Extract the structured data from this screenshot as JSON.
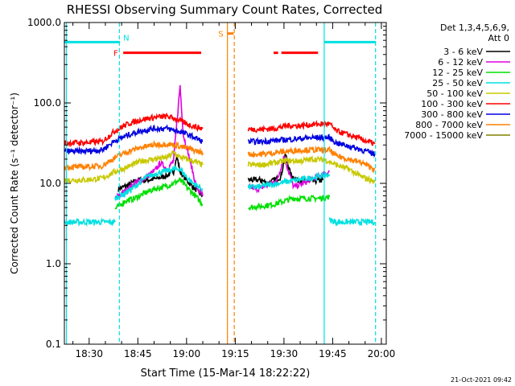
{
  "chart_data": {
    "type": "line",
    "title": "RHESSI Observing Summary Count Rates, Corrected",
    "xlabel": "Start Time (15-Mar-14 18:22:22)",
    "ylabel": "Corrected Count Rate (s⁻¹ detector⁻¹)",
    "yscale": "log",
    "ylim": [
      0.1,
      1000
    ],
    "xlim_minutes_after_18_00": [
      22.37,
      121.5
    ],
    "x_tick_labels": [
      "18:30",
      "18:45",
      "19:00",
      "19:15",
      "19:30",
      "19:45",
      "20:00"
    ],
    "x_tick_minutes": [
      30,
      45,
      60,
      75,
      90,
      105,
      120
    ],
    "y_tick_labels": [
      "0.1",
      "1.0",
      "10.0",
      "100.0",
      "1000.0"
    ],
    "y_tick_values": [
      0.1,
      1,
      10,
      100,
      1000
    ],
    "legend": {
      "placement": "right-outside",
      "header": [
        "Det 1,3,4,5,6,9,",
        "Att 0"
      ],
      "entries": [
        {
          "label": "3 - 6 keV",
          "color": "#000000"
        },
        {
          "label": "6 - 12 keV",
          "color": "#e000e0"
        },
        {
          "label": "12 - 25 keV",
          "color": "#00e000"
        },
        {
          "label": "25 - 50 keV",
          "color": "#00e0e0"
        },
        {
          "label": "50 - 100 keV",
          "color": "#c8c800"
        },
        {
          "label": "100 - 300 keV",
          "color": "#ff0000"
        },
        {
          "label": "300 - 800 keV",
          "color": "#0000e0"
        },
        {
          "label": "800 - 7000 keV",
          "color": "#ff8000"
        },
        {
          "label": "7000 - 15000 keV",
          "color": "#808000"
        }
      ]
    },
    "series": [
      {
        "name": "3 - 6 keV",
        "color": "#000000",
        "segments": [
          [
            [
              39,
              8.5
            ],
            [
              42,
              9.5
            ],
            [
              45,
              11
            ],
            [
              48,
              11
            ],
            [
              51,
              11.5
            ],
            [
              54,
              12.5
            ],
            [
              56,
              14
            ],
            [
              57,
              22
            ],
            [
              58,
              14
            ],
            [
              60,
              11
            ],
            [
              62,
              9
            ],
            [
              65,
              7
            ]
          ],
          [
            [
              79,
              11
            ],
            [
              83,
              11
            ],
            [
              85,
              10
            ],
            [
              87,
              11
            ],
            [
              89,
              12
            ],
            [
              90.5,
              23
            ],
            [
              92,
              13
            ],
            [
              94,
              11
            ],
            [
              98,
              10.5
            ],
            [
              102,
              11
            ]
          ]
        ]
      },
      {
        "name": "6 - 12 keV",
        "color": "#e000e0",
        "segments": [
          [
            [
              38,
              6.5
            ],
            [
              41,
              8
            ],
            [
              44,
              10
            ],
            [
              47,
              11.5
            ],
            [
              50,
              14
            ],
            [
              52,
              18
            ],
            [
              54,
              15
            ],
            [
              56,
              19
            ],
            [
              58,
              165
            ],
            [
              59,
              40
            ],
            [
              61,
              20
            ],
            [
              63,
              9
            ],
            [
              65,
              7
            ]
          ],
          [
            [
              79,
              9
            ],
            [
              82,
              8.5
            ],
            [
              85,
              9.5
            ],
            [
              88,
              11
            ],
            [
              90,
              22
            ],
            [
              91,
              16
            ],
            [
              93,
              9
            ],
            [
              96,
              10
            ],
            [
              100,
              12
            ],
            [
              104,
              14
            ]
          ]
        ]
      },
      {
        "name": "12 - 25 keV",
        "color": "#00e000",
        "segments": [
          [
            [
              38,
              4.8
            ],
            [
              41,
              6
            ],
            [
              44,
              6.5
            ],
            [
              47,
              7.5
            ],
            [
              50,
              8.5
            ],
            [
              53,
              9
            ],
            [
              56,
              10
            ],
            [
              58,
              11
            ],
            [
              60,
              9
            ],
            [
              62,
              7.5
            ],
            [
              65,
              5.5
            ]
          ],
          [
            [
              79,
              5
            ],
            [
              83,
              5.2
            ],
            [
              87,
              5.5
            ],
            [
              90,
              6
            ],
            [
              93,
              6.5
            ],
            [
              97,
              6.5
            ],
            [
              101,
              6.5
            ],
            [
              104,
              6.8
            ]
          ]
        ]
      },
      {
        "name": "25 - 50 keV",
        "color": "#00e0e0",
        "segments": [
          [
            [
              22.4,
              3.3
            ],
            [
              38,
              3.3
            ]
          ],
          [
            [
              38,
              6.5
            ],
            [
              41,
              7.5
            ],
            [
              44,
              9
            ],
            [
              47,
              11.5
            ],
            [
              50,
              13
            ],
            [
              53,
              14
            ],
            [
              56,
              15
            ],
            [
              58,
              15
            ],
            [
              60,
              12
            ],
            [
              62,
              10
            ],
            [
              65,
              8.5
            ]
          ],
          [
            [
              79,
              9
            ],
            [
              82,
              9
            ],
            [
              85,
              9.5
            ],
            [
              88,
              10
            ],
            [
              91,
              10.5
            ],
            [
              94,
              11
            ],
            [
              97,
              11.5
            ],
            [
              100,
              12
            ],
            [
              104,
              13
            ]
          ],
          [
            [
              104,
              3.5
            ],
            [
              106,
              3.3
            ],
            [
              110,
              3.3
            ],
            [
              114,
              3.3
            ],
            [
              118,
              3.3
            ]
          ]
        ]
      },
      {
        "name": "50 - 100 keV",
        "color": "#c8c800",
        "segments": [
          [
            [
              22.4,
              11
            ],
            [
              28,
              11
            ],
            [
              34,
              11.5
            ],
            [
              38,
              14
            ],
            [
              42,
              16
            ],
            [
              46,
              19
            ],
            [
              50,
              20
            ],
            [
              54,
              21
            ],
            [
              56,
              24
            ],
            [
              58,
              21
            ],
            [
              62,
              19
            ],
            [
              65,
              17
            ]
          ],
          [
            [
              79,
              17
            ],
            [
              83,
              17
            ],
            [
              87,
              18
            ],
            [
              91,
              19
            ],
            [
              95,
              19
            ],
            [
              99,
              20
            ],
            [
              103,
              19.5
            ],
            [
              106,
              17
            ],
            [
              110,
              15
            ],
            [
              114,
              12
            ],
            [
              118,
              10.5
            ]
          ]
        ]
      },
      {
        "name": "100 - 300 keV",
        "color": "#ff0000",
        "segments": [
          [
            [
              22.4,
              32
            ],
            [
              28,
              32
            ],
            [
              34,
              33
            ],
            [
              38,
              45
            ],
            [
              42,
              55
            ],
            [
              46,
              62
            ],
            [
              50,
              66
            ],
            [
              54,
              68
            ],
            [
              57,
              63
            ],
            [
              60,
              55
            ],
            [
              63,
              50
            ],
            [
              65,
              48
            ]
          ],
          [
            [
              79,
              47
            ],
            [
              83,
              47
            ],
            [
              87,
              48
            ],
            [
              91,
              52
            ],
            [
              95,
              52
            ],
            [
              99,
              54
            ],
            [
              104,
              55
            ],
            [
              106,
              45
            ],
            [
              110,
              40
            ],
            [
              114,
              35
            ],
            [
              118,
              31
            ]
          ]
        ]
      },
      {
        "name": "300 - 800 keV",
        "color": "#0000e0",
        "segments": [
          [
            [
              22.4,
              25
            ],
            [
              28,
              25
            ],
            [
              34,
              26
            ],
            [
              38,
              34
            ],
            [
              42,
              40
            ],
            [
              46,
              45
            ],
            [
              50,
              48
            ],
            [
              54,
              48
            ],
            [
              58,
              44
            ],
            [
              62,
              38
            ],
            [
              65,
              33
            ]
          ],
          [
            [
              79,
              33
            ],
            [
              83,
              33
            ],
            [
              87,
              34
            ],
            [
              91,
              35
            ],
            [
              95,
              36
            ],
            [
              99,
              37
            ],
            [
              104,
              37
            ],
            [
              106,
              32
            ],
            [
              110,
              29
            ],
            [
              114,
              26
            ],
            [
              118,
              23
            ]
          ]
        ]
      },
      {
        "name": "800 - 7000 keV",
        "color": "#ff8000",
        "segments": [
          [
            [
              22.4,
              16
            ],
            [
              28,
              16
            ],
            [
              34,
              16.5
            ],
            [
              38,
              21
            ],
            [
              42,
              25
            ],
            [
              46,
              28
            ],
            [
              50,
              30
            ],
            [
              54,
              31
            ],
            [
              58,
              29
            ],
            [
              62,
              26
            ],
            [
              65,
              24
            ]
          ],
          [
            [
              79,
              23
            ],
            [
              83,
              23
            ],
            [
              87,
              24
            ],
            [
              91,
              25
            ],
            [
              95,
              26
            ],
            [
              99,
              26
            ],
            [
              104,
              26
            ],
            [
              106,
              22
            ],
            [
              110,
              20
            ],
            [
              114,
              18
            ],
            [
              118,
              15
            ]
          ]
        ]
      },
      {
        "name": "7000 - 15000 keV",
        "color": "#808000",
        "segments": []
      }
    ],
    "annotations": [
      {
        "type": "flag-bar",
        "label": "N",
        "color": "#00e0e0",
        "x_range": [
          22.4,
          39.5
        ],
        "y": 570
      },
      {
        "type": "flag-bar",
        "label": "",
        "color": "#00e0e0",
        "x_range": [
          102.4,
          118.3
        ],
        "y": 570
      },
      {
        "type": "flag-bar",
        "label": "F",
        "color": "#ff0000",
        "x_range": [
          40.5,
          64.5
        ],
        "y": 420
      },
      {
        "type": "flag-bar",
        "label": "",
        "color": "#ff0000",
        "x_range": [
          86.8,
          88.2
        ],
        "y": 420
      },
      {
        "type": "flag-bar",
        "label": "",
        "color": "#ff0000",
        "x_range": [
          89.2,
          100.5
        ],
        "y": 420
      },
      {
        "type": "flag-bar",
        "label": "S",
        "color": "#ff8000",
        "x_range": [
          72.5,
          74.5
        ],
        "y": 730
      },
      {
        "type": "vline",
        "style": "dashed",
        "color": "#00e0e0",
        "x": 39.3
      },
      {
        "type": "vline",
        "style": "dashed",
        "color": "#00e0e0",
        "x": 118.2
      },
      {
        "type": "vline",
        "style": "solid",
        "color": "#00e0e0",
        "x": 102.4
      },
      {
        "type": "vline",
        "style": "solid",
        "color": "#00e0e0",
        "x": 23.0
      },
      {
        "type": "vline",
        "style": "solid",
        "color": "#ff8000",
        "x": 72.6
      },
      {
        "type": "vline",
        "style": "dashed",
        "color": "#ff8000",
        "x": 74.7
      }
    ]
  },
  "footer_timestamp": "21-Oct-2021 09:42"
}
